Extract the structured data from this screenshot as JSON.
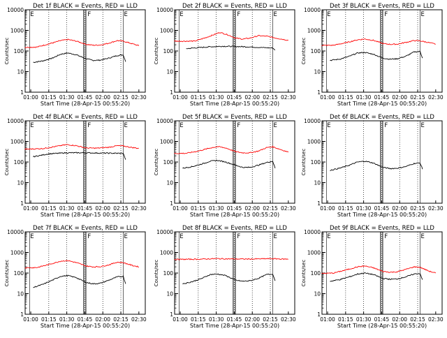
{
  "figure": {
    "series_colors": {
      "events": "#000000",
      "lld": "#ff0000"
    },
    "marker_labels": [
      "E",
      "F",
      "E"
    ],
    "x_ticks": [
      "01:00",
      "01:15",
      "01:30",
      "01:45",
      "02:00",
      "02:15",
      "02:30"
    ],
    "y_ticks": [
      "1",
      "10",
      "100",
      "1000",
      "10000"
    ],
    "ylabel": "Counts/sec",
    "xlabel": "Start Time (28-Apr-15 00:55:20)"
  },
  "chart_data": [
    {
      "type": "line",
      "title": "Det 1f BLACK = Events, RED = LLD",
      "xlabel": "Start Time (28-Apr-15 00:55:20)",
      "ylabel": "Counts/sec",
      "y_scale": "log",
      "ylim": [
        1,
        10000
      ],
      "xlim": [
        "00:55",
        "02:35"
      ],
      "series": [
        {
          "key": "events",
          "points": [
            [
              "01:02",
              28
            ],
            [
              "01:10",
              33
            ],
            [
              "01:18",
              45
            ],
            [
              "01:25",
              70
            ],
            [
              "01:31",
              80
            ],
            [
              "01:38",
              65
            ],
            [
              "01:46",
              42
            ],
            [
              "01:52",
              35
            ],
            [
              "01:58",
              36
            ],
            [
              "02:05",
              45
            ],
            [
              "02:12",
              60
            ],
            [
              "02:17",
              65
            ],
            [
              "02:19",
              30
            ]
          ]
        },
        {
          "key": "lld",
          "points": [
            [
              "00:55",
              150
            ],
            [
              "01:05",
              155
            ],
            [
              "01:15",
              220
            ],
            [
              "01:25",
              320
            ],
            [
              "01:31",
              360
            ],
            [
              "01:38",
              300
            ],
            [
              "01:46",
              210
            ],
            [
              "01:52",
              190
            ],
            [
              "01:58",
              195
            ],
            [
              "02:05",
              240
            ],
            [
              "02:12",
              320
            ],
            [
              "02:17",
              300
            ],
            [
              "02:25",
              220
            ],
            [
              "02:30",
              180
            ]
          ]
        }
      ]
    },
    {
      "type": "line",
      "title": "Det 2f BLACK = Events, RED = LLD",
      "xlabel": "Start Time (28-Apr-15 00:55:20)",
      "ylabel": "Counts/sec",
      "y_scale": "log",
      "ylim": [
        1,
        10000
      ],
      "xlim": [
        "00:55",
        "02:35"
      ],
      "series": [
        {
          "key": "events",
          "points": [
            [
              "01:05",
              130
            ],
            [
              "01:15",
              145
            ],
            [
              "01:25",
              160
            ],
            [
              "01:35",
              170
            ],
            [
              "01:46",
              165
            ],
            [
              "01:55",
              160
            ],
            [
              "02:05",
              150
            ],
            [
              "02:15",
              140
            ],
            [
              "02:17",
              140
            ],
            [
              "02:19",
              110
            ]
          ]
        },
        {
          "key": "lld",
          "points": [
            [
              "00:55",
              300
            ],
            [
              "01:12",
              300
            ],
            [
              "01:20",
              420
            ],
            [
              "01:28",
              620
            ],
            [
              "01:33",
              800
            ],
            [
              "01:40",
              600
            ],
            [
              "01:46",
              420
            ],
            [
              "01:52",
              380
            ],
            [
              "01:58",
              420
            ],
            [
              "02:05",
              550
            ],
            [
              "02:12",
              520
            ],
            [
              "02:20",
              420
            ],
            [
              "02:30",
              330
            ]
          ]
        }
      ]
    },
    {
      "type": "line",
      "title": "Det 3f BLACK = Events, RED = LLD",
      "xlabel": "Start Time (28-Apr-15 00:55:20)",
      "ylabel": "Counts/sec",
      "y_scale": "log",
      "ylim": [
        1,
        10000
      ],
      "xlim": [
        "00:55",
        "02:35"
      ],
      "series": [
        {
          "key": "events",
          "points": [
            [
              "01:02",
              35
            ],
            [
              "01:10",
              40
            ],
            [
              "01:18",
              55
            ],
            [
              "01:25",
              80
            ],
            [
              "01:31",
              85
            ],
            [
              "01:38",
              70
            ],
            [
              "01:46",
              45
            ],
            [
              "01:52",
              40
            ],
            [
              "01:58",
              42
            ],
            [
              "02:05",
              55
            ],
            [
              "02:12",
              90
            ],
            [
              "02:17",
              95
            ],
            [
              "02:19",
              45
            ]
          ]
        },
        {
          "key": "lld",
          "points": [
            [
              "00:55",
              185
            ],
            [
              "01:05",
              190
            ],
            [
              "01:15",
              250
            ],
            [
              "01:25",
              350
            ],
            [
              "01:31",
              380
            ],
            [
              "01:38",
              330
            ],
            [
              "01:46",
              230
            ],
            [
              "01:52",
              210
            ],
            [
              "01:58",
              215
            ],
            [
              "02:05",
              260
            ],
            [
              "02:12",
              320
            ],
            [
              "02:17",
              310
            ],
            [
              "02:25",
              250
            ],
            [
              "02:30",
              215
            ]
          ]
        }
      ]
    },
    {
      "type": "line",
      "title": "Det 4f BLACK = Events, RED = LLD",
      "xlabel": "Start Time (28-Apr-15 00:55:20)",
      "ylabel": "Counts/sec",
      "y_scale": "log",
      "ylim": [
        1,
        10000
      ],
      "xlim": [
        "00:55",
        "02:35"
      ],
      "series": [
        {
          "key": "events",
          "points": [
            [
              "01:02",
              180
            ],
            [
              "01:15",
              250
            ],
            [
              "01:30",
              280
            ],
            [
              "01:46",
              280
            ],
            [
              "02:00",
              270
            ],
            [
              "02:15",
              265
            ],
            [
              "02:17",
              265
            ],
            [
              "02:19",
              130
            ]
          ]
        },
        {
          "key": "lld",
          "points": [
            [
              "00:55",
              420
            ],
            [
              "01:10",
              450
            ],
            [
              "01:20",
              560
            ],
            [
              "01:30",
              700
            ],
            [
              "01:38",
              620
            ],
            [
              "01:46",
              480
            ],
            [
              "01:55",
              470
            ],
            [
              "02:05",
              520
            ],
            [
              "02:12",
              620
            ],
            [
              "02:17",
              600
            ],
            [
              "02:25",
              500
            ],
            [
              "02:30",
              460
            ]
          ]
        }
      ]
    },
    {
      "type": "line",
      "title": "Det 5f BLACK = Events, RED = LLD",
      "xlabel": "Start Time (28-Apr-15 00:55:20)",
      "ylabel": "Counts/sec",
      "y_scale": "log",
      "ylim": [
        1,
        10000
      ],
      "xlim": [
        "00:55",
        "02:35"
      ],
      "series": [
        {
          "key": "events",
          "points": [
            [
              "01:02",
              50
            ],
            [
              "01:10",
              60
            ],
            [
              "01:18",
              80
            ],
            [
              "01:25",
              110
            ],
            [
              "01:31",
              120
            ],
            [
              "01:38",
              100
            ],
            [
              "01:46",
              70
            ],
            [
              "01:52",
              55
            ],
            [
              "01:58",
              55
            ],
            [
              "02:05",
              70
            ],
            [
              "02:12",
              95
            ],
            [
              "02:17",
              110
            ],
            [
              "02:19",
              50
            ]
          ]
        },
        {
          "key": "lld",
          "points": [
            [
              "00:55",
              260
            ],
            [
              "01:05",
              265
            ],
            [
              "01:15",
              340
            ],
            [
              "01:25",
              480
            ],
            [
              "01:31",
              560
            ],
            [
              "01:38",
              480
            ],
            [
              "01:46",
              320
            ],
            [
              "01:52",
              280
            ],
            [
              "01:58",
              280
            ],
            [
              "02:05",
              340
            ],
            [
              "02:12",
              500
            ],
            [
              "02:17",
              550
            ],
            [
              "02:25",
              380
            ],
            [
              "02:30",
              300
            ]
          ]
        }
      ]
    },
    {
      "type": "line",
      "title": "Det 6f BLACK = Events, RED = LLD",
      "xlabel": "Start Time (28-Apr-15 00:55:20)",
      "ylabel": "Counts/sec",
      "y_scale": "log",
      "ylim": [
        1,
        10000
      ],
      "xlim": [
        "00:55",
        "02:35"
      ],
      "series": [
        {
          "key": "events",
          "points": [
            [
              "01:02",
              40
            ],
            [
              "01:10",
              50
            ],
            [
              "01:18",
              70
            ],
            [
              "01:25",
              100
            ],
            [
              "01:31",
              110
            ],
            [
              "01:38",
              90
            ],
            [
              "01:46",
              55
            ],
            [
              "01:52",
              48
            ],
            [
              "01:58",
              50
            ],
            [
              "02:05",
              60
            ],
            [
              "02:12",
              85
            ],
            [
              "02:17",
              90
            ],
            [
              "02:19",
              45
            ]
          ]
        }
      ]
    },
    {
      "type": "line",
      "title": "Det 7f BLACK = Events, RED = LLD",
      "xlabel": "Start Time (28-Apr-15 00:55:20)",
      "ylabel": "Counts/sec",
      "y_scale": "log",
      "ylim": [
        1,
        10000
      ],
      "xlim": [
        "00:55",
        "02:35"
      ],
      "series": [
        {
          "key": "events",
          "points": [
            [
              "01:02",
              20
            ],
            [
              "01:10",
              28
            ],
            [
              "01:18",
              45
            ],
            [
              "01:25",
              70
            ],
            [
              "01:31",
              75
            ],
            [
              "01:38",
              60
            ],
            [
              "01:46",
              35
            ],
            [
              "01:52",
              30
            ],
            [
              "01:58",
              32
            ],
            [
              "02:05",
              45
            ],
            [
              "02:12",
              65
            ],
            [
              "02:17",
              70
            ],
            [
              "02:19",
              30
            ]
          ]
        },
        {
          "key": "lld",
          "points": [
            [
              "00:55",
              180
            ],
            [
              "01:05",
              185
            ],
            [
              "01:15",
              260
            ],
            [
              "01:25",
              380
            ],
            [
              "01:31",
              400
            ],
            [
              "01:38",
              320
            ],
            [
              "01:46",
              220
            ],
            [
              "01:52",
              200
            ],
            [
              "01:58",
              205
            ],
            [
              "02:05",
              250
            ],
            [
              "02:12",
              340
            ],
            [
              "02:17",
              320
            ],
            [
              "02:25",
              230
            ],
            [
              "02:30",
              200
            ]
          ]
        }
      ]
    },
    {
      "type": "line",
      "title": "Det 8f BLACK = Events, RED = LLD",
      "xlabel": "Start Time (28-Apr-15 00:55:20)",
      "ylabel": "Counts/sec",
      "y_scale": "log",
      "ylim": [
        1,
        10000
      ],
      "xlim": [
        "00:55",
        "02:35"
      ],
      "series": [
        {
          "key": "events",
          "points": [
            [
              "01:02",
              30
            ],
            [
              "01:10",
              38
            ],
            [
              "01:18",
              55
            ],
            [
              "01:25",
              85
            ],
            [
              "01:31",
              90
            ],
            [
              "01:38",
              75
            ],
            [
              "01:46",
              45
            ],
            [
              "01:52",
              40
            ],
            [
              "01:58",
              42
            ],
            [
              "02:05",
              55
            ],
            [
              "02:12",
              85
            ],
            [
              "02:17",
              90
            ],
            [
              "02:19",
              42
            ]
          ]
        },
        {
          "key": "lld",
          "points": [
            [
              "00:55",
              460
            ],
            [
              "01:15",
              470
            ],
            [
              "01:30",
              500
            ],
            [
              "01:46",
              480
            ],
            [
              "02:00",
              480
            ],
            [
              "02:15",
              500
            ],
            [
              "02:30",
              470
            ]
          ]
        }
      ]
    },
    {
      "type": "line",
      "title": "Det 9f BLACK = Events, RED = LLD",
      "xlabel": "Start Time (28-Apr-15 00:55:20)",
      "ylabel": "Counts/sec",
      "y_scale": "log",
      "ylim": [
        1,
        10000
      ],
      "xlim": [
        "00:55",
        "02:35"
      ],
      "series": [
        {
          "key": "events",
          "points": [
            [
              "01:02",
              40
            ],
            [
              "01:10",
              48
            ],
            [
              "01:18",
              65
            ],
            [
              "01:25",
              90
            ],
            [
              "01:31",
              100
            ],
            [
              "01:38",
              85
            ],
            [
              "01:46",
              55
            ],
            [
              "01:52",
              50
            ],
            [
              "01:58",
              52
            ],
            [
              "02:05",
              65
            ],
            [
              "02:12",
              90
            ],
            [
              "02:17",
              95
            ],
            [
              "02:19",
              48
            ]
          ]
        },
        {
          "key": "lld",
          "points": [
            [
              "00:55",
              95
            ],
            [
              "01:05",
              100
            ],
            [
              "01:15",
              140
            ],
            [
              "01:25",
              200
            ],
            [
              "01:31",
              220
            ],
            [
              "01:38",
              180
            ],
            [
              "01:46",
              120
            ],
            [
              "01:52",
              110
            ],
            [
              "01:58",
              115
            ],
            [
              "02:05",
              150
            ],
            [
              "02:12",
              200
            ],
            [
              "02:17",
              190
            ],
            [
              "02:25",
              120
            ],
            [
              "02:30",
              100
            ]
          ]
        }
      ]
    }
  ]
}
